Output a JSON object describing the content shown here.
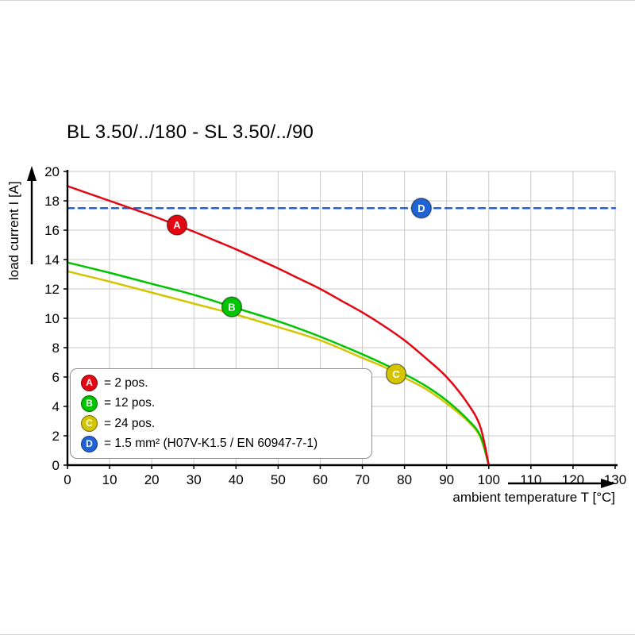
{
  "title": "BL 3.50/../180 - SL 3.50/../90",
  "chart_data": {
    "type": "line",
    "title": "BL 3.50/../180 - SL 3.50/../90",
    "xlabel": "ambient temperature T [°C]",
    "ylabel": "load current I [A]",
    "xlim": [
      0,
      130
    ],
    "ylim": [
      0,
      20
    ],
    "xticks": [
      0,
      10,
      20,
      30,
      40,
      50,
      60,
      70,
      80,
      90,
      100,
      110,
      120,
      130
    ],
    "yticks": [
      0,
      2,
      4,
      6,
      8,
      10,
      12,
      14,
      16,
      18,
      20
    ],
    "grid": true,
    "legend_position": "bottom-left",
    "series": [
      {
        "id": "D",
        "name": "1.5 mm² (H07V-K1.5 / EN 60947-7-1)",
        "color": "#1f63d6",
        "style": "dashed",
        "marker": [
          84,
          17.5
        ],
        "points": [
          [
            0,
            17.5
          ],
          [
            130,
            17.5
          ]
        ]
      },
      {
        "id": "C",
        "name": "24 pos.",
        "color": "#d4c500",
        "style": "solid",
        "marker": [
          78,
          6.2
        ],
        "points": [
          [
            0,
            13.2
          ],
          [
            10,
            12.5
          ],
          [
            20,
            11.75
          ],
          [
            30,
            11.0
          ],
          [
            40,
            10.25
          ],
          [
            50,
            9.4
          ],
          [
            60,
            8.5
          ],
          [
            70,
            7.3
          ],
          [
            75,
            6.7
          ],
          [
            80,
            5.95
          ],
          [
            85,
            5.2
          ],
          [
            90,
            4.2
          ],
          [
            95,
            3.0
          ],
          [
            98,
            1.9
          ],
          [
            100,
            0
          ]
        ]
      },
      {
        "id": "B",
        "name": "12 pos.",
        "color": "#00c400",
        "style": "solid",
        "marker": [
          39,
          10.78
        ],
        "points": [
          [
            0,
            13.8
          ],
          [
            10,
            13.1
          ],
          [
            20,
            12.35
          ],
          [
            30,
            11.6
          ],
          [
            40,
            10.7
          ],
          [
            50,
            9.8
          ],
          [
            60,
            8.75
          ],
          [
            70,
            7.55
          ],
          [
            75,
            6.9
          ],
          [
            80,
            6.2
          ],
          [
            85,
            5.4
          ],
          [
            90,
            4.4
          ],
          [
            95,
            3.1
          ],
          [
            98,
            2.0
          ],
          [
            100,
            0
          ]
        ]
      },
      {
        "id": "A",
        "name": "2 pos.",
        "color": "#e30613",
        "style": "solid",
        "marker": [
          26,
          16.35
        ],
        "points": [
          [
            0,
            19
          ],
          [
            5,
            18.5
          ],
          [
            10,
            18.0
          ],
          [
            15,
            17.5
          ],
          [
            20,
            17.0
          ],
          [
            25,
            16.45
          ],
          [
            30,
            15.9
          ],
          [
            35,
            15.3
          ],
          [
            40,
            14.7
          ],
          [
            45,
            14.05
          ],
          [
            50,
            13.4
          ],
          [
            55,
            12.7
          ],
          [
            60,
            12.0
          ],
          [
            65,
            11.2
          ],
          [
            70,
            10.4
          ],
          [
            75,
            9.5
          ],
          [
            80,
            8.5
          ],
          [
            85,
            7.3
          ],
          [
            90,
            6.0
          ],
          [
            95,
            4.2
          ],
          [
            98,
            2.6
          ],
          [
            100,
            0
          ]
        ]
      }
    ],
    "legend": [
      {
        "id": "A",
        "color": "#e30613",
        "label": "= 2 pos."
      },
      {
        "id": "B",
        "color": "#00c400",
        "label": "= 12 pos."
      },
      {
        "id": "C",
        "color": "#d4c500",
        "label": "= 24 pos."
      },
      {
        "id": "D",
        "color": "#1f63d6",
        "label": "= 1.5 mm² (H07V-K1.5 / EN 60947-7-1)"
      }
    ]
  }
}
